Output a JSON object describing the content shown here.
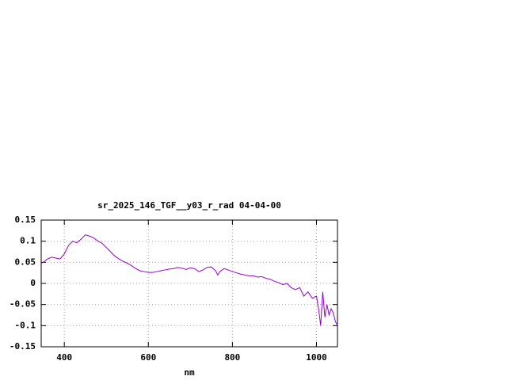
{
  "chart_data": {
    "type": "line",
    "title": "sr_2025_146_TGF__y03_r_rad 04-04-00",
    "x_label": "nm",
    "color": "#9400d3",
    "x": [
      345,
      350,
      360,
      370,
      380,
      390,
      400,
      410,
      420,
      430,
      440,
      450,
      460,
      470,
      480,
      490,
      500,
      510,
      520,
      530,
      540,
      550,
      560,
      570,
      580,
      590,
      600,
      610,
      620,
      630,
      640,
      650,
      660,
      670,
      680,
      690,
      700,
      710,
      720,
      730,
      740,
      750,
      760,
      765,
      770,
      780,
      790,
      800,
      810,
      820,
      830,
      840,
      850,
      860,
      870,
      880,
      890,
      900,
      910,
      920,
      930,
      940,
      950,
      960,
      970,
      980,
      990,
      1000,
      1005,
      1010,
      1015,
      1020,
      1025,
      1030,
      1035,
      1040,
      1045,
      1050
    ],
    "values": [
      0.048,
      0.05,
      0.058,
      0.062,
      0.06,
      0.058,
      0.07,
      0.09,
      0.1,
      0.096,
      0.105,
      0.115,
      0.112,
      0.108,
      0.1,
      0.095,
      0.085,
      0.075,
      0.065,
      0.058,
      0.052,
      0.048,
      0.042,
      0.035,
      0.03,
      0.028,
      0.026,
      0.026,
      0.028,
      0.03,
      0.032,
      0.034,
      0.035,
      0.038,
      0.036,
      0.033,
      0.037,
      0.035,
      0.028,
      0.032,
      0.038,
      0.039,
      0.03,
      0.02,
      0.028,
      0.035,
      0.032,
      0.028,
      0.025,
      0.022,
      0.02,
      0.018,
      0.018,
      0.015,
      0.016,
      0.012,
      0.01,
      0.005,
      0.002,
      -0.003,
      0.0,
      -0.01,
      -0.015,
      -0.01,
      -0.03,
      -0.02,
      -0.035,
      -0.03,
      -0.06,
      -0.1,
      -0.02,
      -0.08,
      -0.05,
      -0.075,
      -0.06,
      -0.07,
      -0.09,
      -0.1
    ],
    "xlim": [
      345,
      1050
    ],
    "xticks": [
      400,
      600,
      800,
      1000
    ],
    "ylim": [
      -0.15,
      0.15
    ],
    "yticks": [
      -0.15,
      -0.1,
      -0.05,
      0,
      0.05,
      0.1,
      0.15
    ],
    "grid": true
  }
}
